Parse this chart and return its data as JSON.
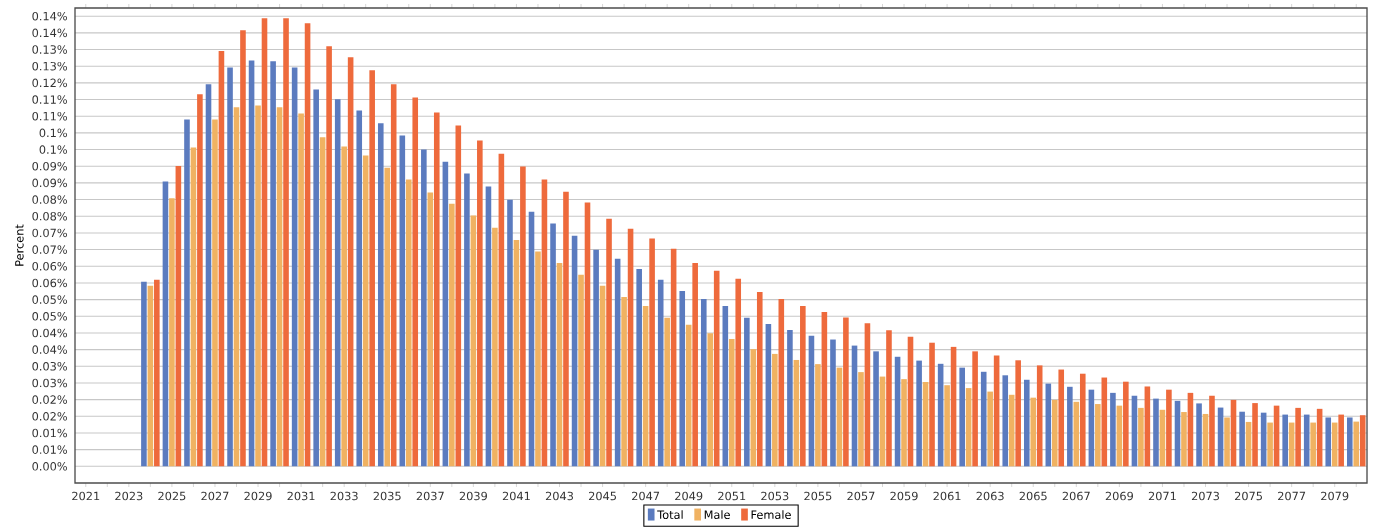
{
  "chart_data": {
    "type": "bar",
    "ylabel": "Percent",
    "grid": "y",
    "legend": "bottom",
    "categories": [
      "2021",
      null,
      "2023",
      null,
      "2025",
      null,
      "2027",
      null,
      "2029",
      null,
      "2031",
      null,
      "2033",
      null,
      "2035",
      null,
      "2037",
      null,
      "2039",
      null,
      "2041",
      null,
      "2043",
      null,
      "2045",
      null,
      "2047",
      null,
      "2049",
      null,
      "2051",
      null,
      "2053",
      null,
      "2055",
      null,
      "2057",
      null,
      "2059",
      null,
      "2061",
      null,
      "2063",
      null,
      "2065",
      null,
      "2067",
      null,
      "2069",
      null,
      "2071",
      null,
      "2073",
      null,
      "2075",
      null,
      "2077",
      null,
      "2079",
      null
    ],
    "ylim": [
      -0.00522,
      0.1435
    ],
    "yticks": [
      {
        "value": 0,
        "label": "0.00%"
      },
      {
        "value": 0.00522,
        "label": "0.01%"
      },
      {
        "value": 0.01044,
        "label": "0.01%"
      },
      {
        "value": 0.01566,
        "label": "0.02%"
      },
      {
        "value": 0.02088,
        "label": "0.02%"
      },
      {
        "value": 0.0261,
        "label": "0.03%"
      },
      {
        "value": 0.03132,
        "label": "0.03%"
      },
      {
        "value": 0.03654,
        "label": "0.04%"
      },
      {
        "value": 0.04176,
        "label": "0.04%"
      },
      {
        "value": 0.04698,
        "label": "0.05%"
      },
      {
        "value": 0.0522,
        "label": "0.05%"
      },
      {
        "value": 0.05742,
        "label": "0.06%"
      },
      {
        "value": 0.06264,
        "label": "0.06%"
      },
      {
        "value": 0.06786,
        "label": "0.07%"
      },
      {
        "value": 0.07308,
        "label": "0.07%"
      },
      {
        "value": 0.0783,
        "label": "0.08%"
      },
      {
        "value": 0.08352,
        "label": "0.08%"
      },
      {
        "value": 0.08874,
        "label": "0.09%"
      },
      {
        "value": 0.09396,
        "label": "0.09%"
      },
      {
        "value": 0.09918,
        "label": "0.1%"
      },
      {
        "value": 0.1044,
        "label": "0.1%"
      },
      {
        "value": 0.10962,
        "label": "0.11%"
      },
      {
        "value": 0.11484,
        "label": "0.11%"
      },
      {
        "value": 0.12006,
        "label": "0.12%"
      },
      {
        "value": 0.12528,
        "label": "0.13%"
      },
      {
        "value": 0.1305,
        "label": "0.13%"
      },
      {
        "value": 0.13572,
        "label": "0.14%"
      },
      {
        "value": 0.14094,
        "label": "0.14%"
      }
    ],
    "series": [
      {
        "name": "Total",
        "color": "#5b7bbf",
        "values": [
          0,
          0,
          0,
          0.0578,
          0.0892,
          0.1086,
          0.1196,
          0.1249,
          0.1271,
          0.1268,
          0.1249,
          0.118,
          0.1149,
          0.1114,
          0.1074,
          0.1036,
          0.0992,
          0.0954,
          0.0917,
          0.0876,
          0.0835,
          0.0797,
          0.076,
          0.0722,
          0.0678,
          0.065,
          0.0618,
          0.0584,
          0.0549,
          0.0524,
          0.0502,
          0.0465,
          0.0446,
          0.0427,
          0.0409,
          0.0397,
          0.0378,
          0.036,
          0.0343,
          0.0331,
          0.0321,
          0.0309,
          0.0296,
          0.0285,
          0.0271,
          0.0259,
          0.0249,
          0.024,
          0.023,
          0.0221,
          0.0212,
          0.0205,
          0.0197,
          0.0184,
          0.0171,
          0.0168,
          0.0162,
          0.0162,
          0.0153,
          0.0153
        ]
      },
      {
        "name": "Male",
        "color": "#f0b262",
        "values": [
          0,
          0,
          0,
          0.0565,
          0.0839,
          0.0998,
          0.1086,
          0.1124,
          0.113,
          0.1124,
          0.1105,
          0.103,
          0.1001,
          0.0973,
          0.0935,
          0.0898,
          0.0857,
          0.0822,
          0.0785,
          0.0747,
          0.0709,
          0.0673,
          0.0637,
          0.06,
          0.0565,
          0.053,
          0.0502,
          0.0465,
          0.0443,
          0.0417,
          0.0399,
          0.0367,
          0.0352,
          0.0333,
          0.032,
          0.0309,
          0.0295,
          0.0281,
          0.0273,
          0.0264,
          0.0254,
          0.0245,
          0.0234,
          0.0224,
          0.0215,
          0.0208,
          0.0202,
          0.0195,
          0.019,
          0.0183,
          0.0177,
          0.017,
          0.0164,
          0.0153,
          0.0139,
          0.0137,
          0.0137,
          0.0137,
          0.0137,
          0.014
        ]
      },
      {
        "name": "Female",
        "color": "#ee6a3c",
        "values": [
          0,
          0,
          0,
          0.0584,
          0.094,
          0.1165,
          0.13,
          0.1365,
          0.1403,
          0.1403,
          0.1387,
          0.1315,
          0.1281,
          0.124,
          0.1196,
          0.1155,
          0.1108,
          0.1067,
          0.102,
          0.0979,
          0.0939,
          0.0898,
          0.086,
          0.0826,
          0.0775,
          0.0744,
          0.0713,
          0.0681,
          0.0637,
          0.0612,
          0.0587,
          0.0546,
          0.0524,
          0.0502,
          0.0483,
          0.0466,
          0.0448,
          0.0426,
          0.0406,
          0.0387,
          0.0374,
          0.036,
          0.0347,
          0.0332,
          0.0316,
          0.0303,
          0.029,
          0.0278,
          0.0265,
          0.025,
          0.024,
          0.023,
          0.0221,
          0.0208,
          0.0198,
          0.019,
          0.0183,
          0.018,
          0.0162,
          0.016
        ]
      }
    ]
  }
}
